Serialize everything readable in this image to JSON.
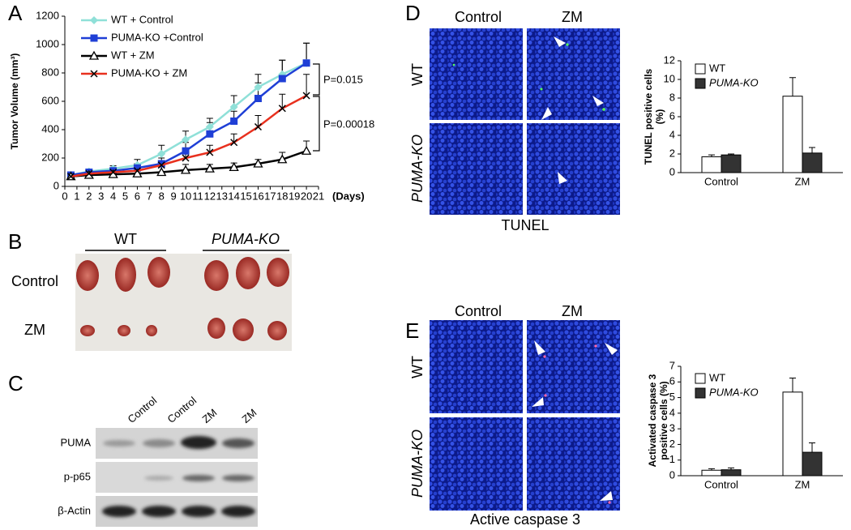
{
  "chart_data": [
    {
      "type": "line",
      "panel_label": "A",
      "ylabel": "Tumor Volume (mm³)",
      "xlabel": "(Days)",
      "x": [
        0.5,
        2,
        4,
        6,
        8,
        10,
        12,
        14,
        16,
        18,
        20
      ],
      "xlim": [
        0,
        21
      ],
      "xticks": [
        0,
        1,
        2,
        3,
        4,
        5,
        6,
        7,
        8,
        9,
        10,
        11,
        12,
        13,
        14,
        15,
        16,
        17,
        18,
        19,
        20,
        21
      ],
      "ylim": [
        0,
        1200
      ],
      "yticks": [
        0,
        200,
        400,
        600,
        800,
        1000,
        1200
      ],
      "series": [
        {
          "name": "WT + Control",
          "color": "#8fe0d8",
          "marker": "diamond",
          "values": [
            80,
            105,
            125,
            150,
            230,
            330,
            420,
            560,
            700,
            790,
            870
          ],
          "errors": [
            10,
            15,
            20,
            40,
            60,
            60,
            60,
            80,
            90,
            100,
            140
          ]
        },
        {
          "name": "PUMA-KO +Control",
          "color": "#1f3fd6",
          "marker": "square",
          "values": [
            80,
            100,
            110,
            130,
            160,
            250,
            370,
            460,
            620,
            760,
            870
          ],
          "errors": [
            15,
            20,
            20,
            30,
            40,
            60,
            80,
            70,
            110,
            130,
            140
          ]
        },
        {
          "name": "WT + ZM",
          "color": "#000000",
          "marker": "triangle",
          "values": [
            70,
            80,
            85,
            90,
            100,
            115,
            125,
            135,
            160,
            190,
            250
          ],
          "errors": [
            15,
            15,
            20,
            20,
            40,
            40,
            30,
            30,
            30,
            50,
            70
          ]
        },
        {
          "name": "PUMA-KO + ZM",
          "color": "#e8301e",
          "marker": "x",
          "values": [
            70,
            90,
            100,
            110,
            150,
            200,
            240,
            310,
            420,
            550,
            640
          ],
          "errors": [
            10,
            15,
            15,
            20,
            30,
            40,
            50,
            60,
            80,
            100,
            150
          ]
        }
      ],
      "annotations": [
        "P=0.015",
        "P=0.00018"
      ]
    },
    {
      "type": "bar",
      "ylabel": "TUNEL positive cells (%)",
      "categories": [
        "Control",
        "ZM"
      ],
      "ylim": [
        0,
        12
      ],
      "yticks": [
        0,
        2,
        4,
        6,
        8,
        10,
        12
      ],
      "series": [
        {
          "name": "WT",
          "color": "#ffffff",
          "values": [
            1.7,
            8.2
          ],
          "errors": [
            0.2,
            2.0
          ]
        },
        {
          "name": "PUMA-KO",
          "color": "#333333",
          "values": [
            1.9,
            2.1
          ],
          "errors": [
            0.1,
            0.6
          ]
        }
      ]
    },
    {
      "type": "bar",
      "ylabel": "Activated caspase 3 positive cells (%)",
      "categories": [
        "Control",
        "ZM"
      ],
      "ylim": [
        0,
        7
      ],
      "yticks": [
        0,
        1,
        2,
        3,
        4,
        5,
        6,
        7
      ],
      "series": [
        {
          "name": "WT",
          "color": "#ffffff",
          "values": [
            0.35,
            5.35
          ],
          "errors": [
            0.1,
            0.9
          ]
        },
        {
          "name": "PUMA-KO",
          "color": "#333333",
          "values": [
            0.38,
            1.5
          ],
          "errors": [
            0.12,
            0.6
          ]
        }
      ]
    }
  ],
  "panels": {
    "B": {
      "label": "B",
      "columns": [
        "WT",
        "PUMA-KO"
      ],
      "rows": [
        "Control",
        "ZM"
      ]
    },
    "C": {
      "label": "C",
      "lanes": [
        "Control",
        "Control",
        "ZM",
        "ZM"
      ],
      "rows": [
        "PUMA",
        "p-p65",
        "β-Actin"
      ]
    },
    "D": {
      "label": "D",
      "columns": [
        "Control",
        "ZM"
      ],
      "rows": [
        "WT",
        "PUMA-KO"
      ],
      "caption": "TUNEL"
    },
    "E": {
      "label": "E",
      "columns": [
        "Control",
        "ZM"
      ],
      "rows": [
        "WT",
        "PUMA-KO"
      ],
      "caption": "Active caspase 3"
    }
  }
}
